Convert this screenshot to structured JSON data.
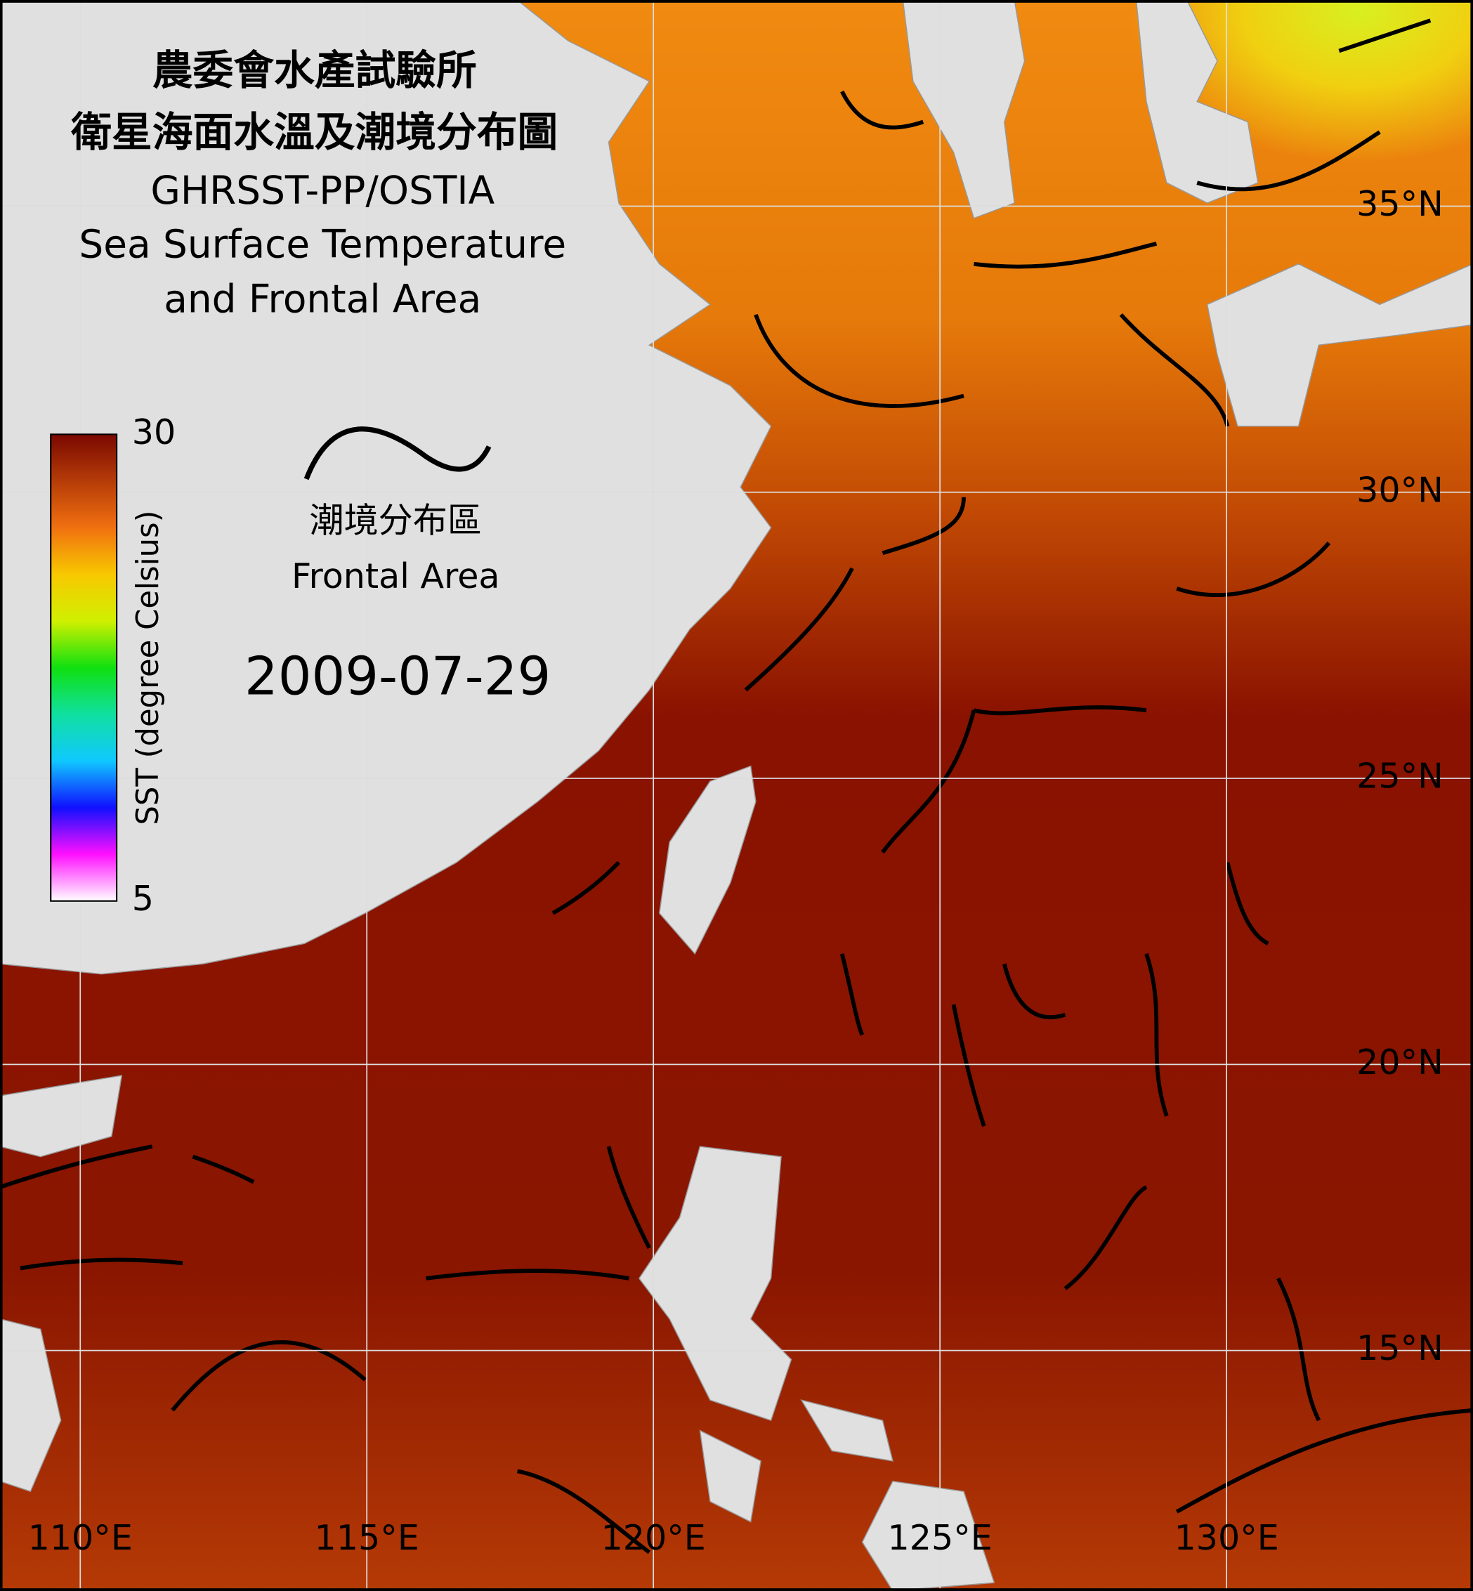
{
  "title_lines": [
    "農委會水產試驗所",
    "衛星海面水溫及潮境分布圖",
    "GHRSST-PP/OSTIA",
    "Sea Surface Temperature",
    "and Frontal Area"
  ],
  "colorbar": {
    "label": "SST (degree Celsius)",
    "lim": [
      5,
      30
    ],
    "ticks": [
      5,
      30
    ]
  },
  "legend": {
    "label_zh": "潮境分布區",
    "label_en": "Frontal Area"
  },
  "date": "2009-07-29",
  "map": {
    "xlim": [
      108.6,
      134.3
    ],
    "ylim": [
      10.8,
      38.6
    ],
    "grid": true,
    "xticks": [
      {
        "value": 110,
        "label": "110°E"
      },
      {
        "value": 115,
        "label": "115°E"
      },
      {
        "value": 120,
        "label": "120°E"
      },
      {
        "value": 125,
        "label": "125°E"
      },
      {
        "value": 130,
        "label": "130°E"
      }
    ],
    "yticks": [
      {
        "value": 35,
        "label": "35°N"
      },
      {
        "value": 30,
        "label": "30°N"
      },
      {
        "value": 25,
        "label": "25°N"
      },
      {
        "value": 20,
        "label": "20°N"
      },
      {
        "value": 15,
        "label": "15°N"
      }
    ]
  }
}
